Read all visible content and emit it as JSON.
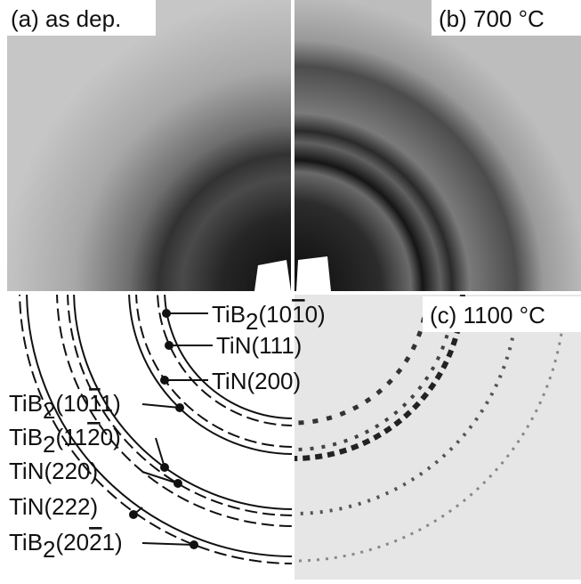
{
  "panels": [
    {
      "label": "(a) as dep."
    },
    {
      "label": "(b) 700 °C"
    },
    {
      "label": "(c) 1100 °C"
    }
  ],
  "rings": [
    {
      "parts": [
        {
          "text": "TiB"
        },
        {
          "text": "2",
          "style": "sub"
        },
        {
          "text": "(10"
        },
        {
          "text": "1",
          "style": "bar"
        },
        {
          "text": "0)"
        }
      ]
    },
    {
      "parts": [
        {
          "text": "TiN(111)"
        }
      ]
    },
    {
      "parts": [
        {
          "text": "TiN(200)"
        }
      ]
    },
    {
      "parts": [
        {
          "text": "TiB"
        },
        {
          "text": "2",
          "style": "sub"
        },
        {
          "text": "(10"
        },
        {
          "text": "1",
          "style": "bar"
        },
        {
          "text": "1)"
        }
      ]
    },
    {
      "parts": [
        {
          "text": "TiB"
        },
        {
          "text": "2",
          "style": "sub"
        },
        {
          "text": "(11"
        },
        {
          "text": "2",
          "style": "bar"
        },
        {
          "text": "0)"
        }
      ]
    },
    {
      "parts": [
        {
          "text": "TiN(220)"
        }
      ]
    },
    {
      "parts": [
        {
          "text": "TiN(222)"
        }
      ]
    },
    {
      "parts": [
        {
          "text": "TiB"
        },
        {
          "text": "2",
          "style": "sub"
        },
        {
          "text": "(20"
        },
        {
          "text": "2",
          "style": "bar"
        },
        {
          "text": "1)"
        }
      ]
    }
  ]
}
